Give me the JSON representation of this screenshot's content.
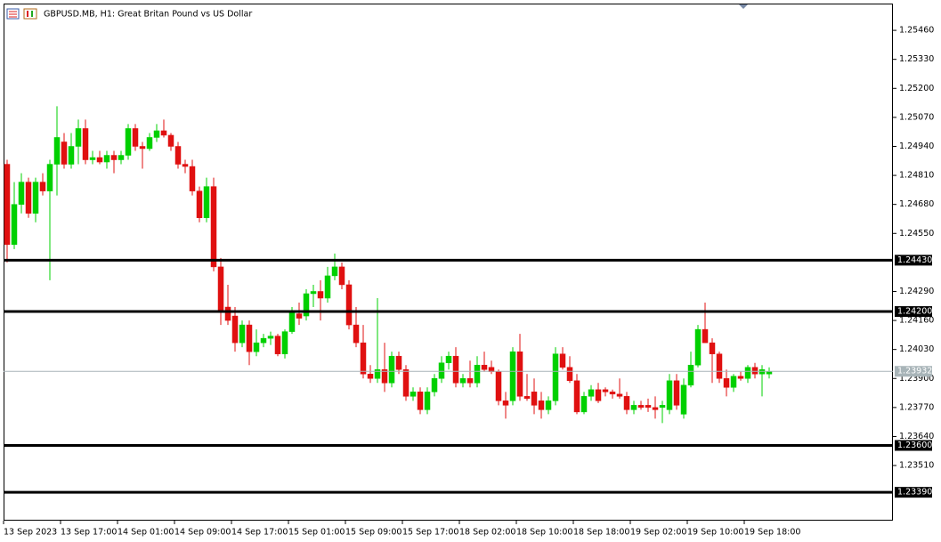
{
  "chart_data": {
    "type": "candlestick",
    "title": "GBPUSD.MB, H1:  Great Britan Pound vs US Dollar",
    "up_color": "#00d000",
    "down_color": "#e01010",
    "categories": [
      "13 Sep 2023",
      null,
      null,
      null,
      null,
      null,
      null,
      null,
      "13 Sep 17:00",
      null,
      null,
      null,
      null,
      null,
      null,
      null,
      "14 Sep 01:00",
      null,
      null,
      null,
      null,
      null,
      null,
      null,
      "14 Sep 09:00",
      null,
      null,
      null,
      null,
      null,
      null,
      null,
      "14 Sep 17:00",
      null,
      null,
      null,
      null,
      null,
      null,
      null,
      "15 Sep 01:00",
      null,
      null,
      null,
      null,
      null,
      null,
      null,
      "15 Sep 09:00",
      null,
      null,
      null,
      null,
      null,
      null,
      null,
      "15 Sep 17:00",
      null,
      null,
      null,
      null,
      null,
      null,
      null,
      "18 Sep 02:00",
      null,
      null,
      null,
      null,
      null,
      null,
      null,
      "18 Sep 10:00",
      null,
      null,
      null,
      null,
      null,
      null,
      null,
      "18 Sep 18:00",
      null,
      null,
      null,
      null,
      null,
      null,
      null,
      "19 Sep 02:00",
      null,
      null,
      null,
      null,
      null,
      null,
      null,
      "19 Sep 10:00",
      null,
      null,
      null,
      null,
      null,
      null,
      null,
      "19 Sep 18:00",
      null,
      null,
      null
    ],
    "open": [
      1.2486,
      1.245,
      1.2468,
      1.2478,
      1.2464,
      1.2478,
      1.2474,
      1.2486,
      1.2496,
      1.2486,
      1.2494,
      1.2502,
      1.2488,
      1.2489,
      1.2487,
      1.249,
      1.2488,
      1.249,
      1.2502,
      1.2494,
      1.2493,
      1.2498,
      1.2501,
      1.2499,
      1.2494,
      1.2486,
      1.2485,
      1.2474,
      1.2462,
      1.2476,
      1.244,
      1.2422,
      1.2418,
      1.2406,
      1.2414,
      1.2402,
      1.2406,
      1.2408,
      1.2409,
      1.2401,
      1.2411,
      1.2419,
      1.2418,
      1.2428,
      1.2429,
      1.2426,
      1.2436,
      1.244,
      1.2432,
      1.2414,
      1.2406,
      1.2392,
      1.239,
      1.2394,
      1.2388,
      1.24,
      1.2394,
      1.2382,
      1.2384,
      1.2376,
      1.2384,
      1.239,
      1.2397,
      1.24,
      1.2388,
      1.239,
      1.2388,
      1.2396,
      1.2395,
      1.2393,
      1.238,
      1.238,
      1.2402,
      1.2382,
      1.2384,
      1.238,
      1.2376,
      1.238,
      1.2401,
      1.2395,
      1.2389,
      1.2375,
      1.2382,
      1.2385,
      1.2385,
      1.2384,
      1.2383,
      1.2382,
      1.2376,
      1.2378,
      1.2378,
      1.2377,
      1.2377,
      1.2376,
      1.2389,
      1.2374,
      1.2387,
      1.2396,
      1.2412,
      1.2406,
      1.2401,
      1.239,
      1.2386,
      1.2391,
      1.239,
      1.2395,
      1.2392,
      1.2392
    ],
    "high": [
      1.2488,
      1.2478,
      1.2482,
      1.248,
      1.248,
      1.2482,
      1.2488,
      1.2512,
      1.25,
      1.25,
      1.2506,
      1.2506,
      1.2492,
      1.2492,
      1.2492,
      1.2492,
      1.2492,
      1.2504,
      1.2504,
      1.2496,
      1.25,
      1.2504,
      1.2506,
      1.25,
      1.2496,
      1.2488,
      1.2488,
      1.2476,
      1.248,
      1.248,
      1.2444,
      1.2432,
      1.2422,
      1.2416,
      1.2416,
      1.2412,
      1.241,
      1.2411,
      1.241,
      1.2412,
      1.2422,
      1.2424,
      1.243,
      1.2432,
      1.2434,
      1.244,
      1.2446,
      1.2442,
      1.2434,
      1.2422,
      1.2414,
      1.2396,
      1.2426,
      1.2406,
      1.2402,
      1.2402,
      1.2396,
      1.2386,
      1.2386,
      1.2386,
      1.2392,
      1.24,
      1.2402,
      1.2404,
      1.2392,
      1.2398,
      1.24,
      1.2402,
      1.2398,
      1.2394,
      1.2384,
      1.2404,
      1.241,
      1.2392,
      1.239,
      1.2384,
      1.2382,
      1.2404,
      1.2404,
      1.24,
      1.2392,
      1.2384,
      1.2387,
      1.2388,
      1.2386,
      1.2385,
      1.239,
      1.2384,
      1.238,
      1.238,
      1.2381,
      1.2382,
      1.238,
      1.2392,
      1.2392,
      1.239,
      1.2402,
      1.2414,
      1.2424,
      1.2408,
      1.2402,
      1.2394,
      1.2392,
      1.2393,
      1.2396,
      1.2397,
      1.2396,
      1.2395
    ],
    "low": [
      1.2442,
      1.2448,
      1.2464,
      1.2462,
      1.246,
      1.2472,
      1.2434,
      1.2472,
      1.2484,
      1.2484,
      1.2486,
      1.2486,
      1.2486,
      1.2486,
      1.2484,
      1.2482,
      1.2486,
      1.2488,
      1.2492,
      1.2484,
      1.2492,
      1.2496,
      1.2498,
      1.2492,
      1.2484,
      1.2482,
      1.2472,
      1.246,
      1.246,
      1.2438,
      1.2414,
      1.2414,
      1.2402,
      1.2404,
      1.2396,
      1.24,
      1.2404,
      1.2405,
      1.24,
      1.2399,
      1.241,
      1.2414,
      1.2416,
      1.2422,
      1.2416,
      1.2424,
      1.2434,
      1.243,
      1.2412,
      1.2404,
      1.239,
      1.2388,
      1.2388,
      1.2384,
      1.2386,
      1.2392,
      1.238,
      1.238,
      1.2374,
      1.2374,
      1.2382,
      1.2388,
      1.2394,
      1.2386,
      1.2386,
      1.2386,
      1.2386,
      1.2393,
      1.2392,
      1.2378,
      1.2372,
      1.2378,
      1.238,
      1.238,
      1.2374,
      1.2372,
      1.2374,
      1.2378,
      1.2394,
      1.2388,
      1.2374,
      1.2374,
      1.238,
      1.2379,
      1.2382,
      1.2381,
      1.2381,
      1.2374,
      1.2374,
      1.2376,
      1.2375,
      1.2372,
      1.237,
      1.2374,
      1.2376,
      1.2372,
      1.2386,
      1.2395,
      1.2406,
      1.2388,
      1.2388,
      1.2382,
      1.2384,
      1.2389,
      1.2388,
      1.239,
      1.2382,
      1.239
    ],
    "close": [
      1.245,
      1.2468,
      1.2478,
      1.2464,
      1.2478,
      1.2474,
      1.2486,
      1.2498,
      1.2486,
      1.2494,
      1.2502,
      1.2488,
      1.2489,
      1.2487,
      1.249,
      1.2488,
      1.249,
      1.2502,
      1.2494,
      1.2493,
      1.2498,
      1.2501,
      1.2499,
      1.2494,
      1.2486,
      1.2485,
      1.2474,
      1.2462,
      1.2476,
      1.244,
      1.242,
      1.2416,
      1.2406,
      1.2414,
      1.2402,
      1.2406,
      1.2408,
      1.2409,
      1.2401,
      1.2411,
      1.242,
      1.2417,
      1.2428,
      1.2429,
      1.2426,
      1.2436,
      1.244,
      1.2432,
      1.2414,
      1.2406,
      1.2392,
      1.239,
      1.2394,
      1.2388,
      1.24,
      1.2394,
      1.2382,
      1.2384,
      1.2376,
      1.2384,
      1.239,
      1.2397,
      1.24,
      1.2388,
      1.239,
      1.2388,
      1.2396,
      1.2394,
      1.2393,
      1.238,
      1.2378,
      1.2402,
      1.2382,
      1.2381,
      1.2378,
      1.2376,
      1.238,
      1.2401,
      1.2395,
      1.2389,
      1.2375,
      1.2382,
      1.2385,
      1.238,
      1.2384,
      1.2383,
      1.2382,
      1.2376,
      1.2378,
      1.2377,
      1.2377,
      1.2376,
      1.2378,
      1.2389,
      1.2378,
      1.2387,
      1.2396,
      1.2412,
      1.2406,
      1.2401,
      1.239,
      1.2386,
      1.2391,
      1.239,
      1.2395,
      1.2392,
      1.2394,
      1.23932
    ],
    "ylim": [
      1.23263,
      1.2558
    ],
    "yticks": [
      {
        "value": 1.2546,
        "label": "1.25460"
      },
      {
        "value": 1.2533,
        "label": "1.25330"
      },
      {
        "value": 1.252,
        "label": "1.25200"
      },
      {
        "value": 1.2507,
        "label": "1.25070"
      },
      {
        "value": 1.2494,
        "label": "1.24940"
      },
      {
        "value": 1.2481,
        "label": "1.24810"
      },
      {
        "value": 1.2468,
        "label": "1.24680"
      },
      {
        "value": 1.2455,
        "label": "1.24550"
      },
      {
        "value": 1.2429,
        "label": "1.24290"
      },
      {
        "value": 1.2416,
        "label": "1.24160"
      },
      {
        "value": 1.2403,
        "label": "1.24030"
      },
      {
        "value": 1.239,
        "label": "1.23900"
      },
      {
        "value": 1.2377,
        "label": "1.23770"
      },
      {
        "value": 1.2364,
        "label": "1.23640"
      },
      {
        "value": 1.2351,
        "label": "1.23510"
      }
    ],
    "levels": [
      {
        "value": 1.2443,
        "label": "1.24430"
      },
      {
        "value": 1.242,
        "label": "1.24200"
      },
      {
        "value": 1.236,
        "label": "1.23600"
      },
      {
        "value": 1.2339,
        "label": "1.23390"
      }
    ],
    "current_price": 1.23932
  }
}
